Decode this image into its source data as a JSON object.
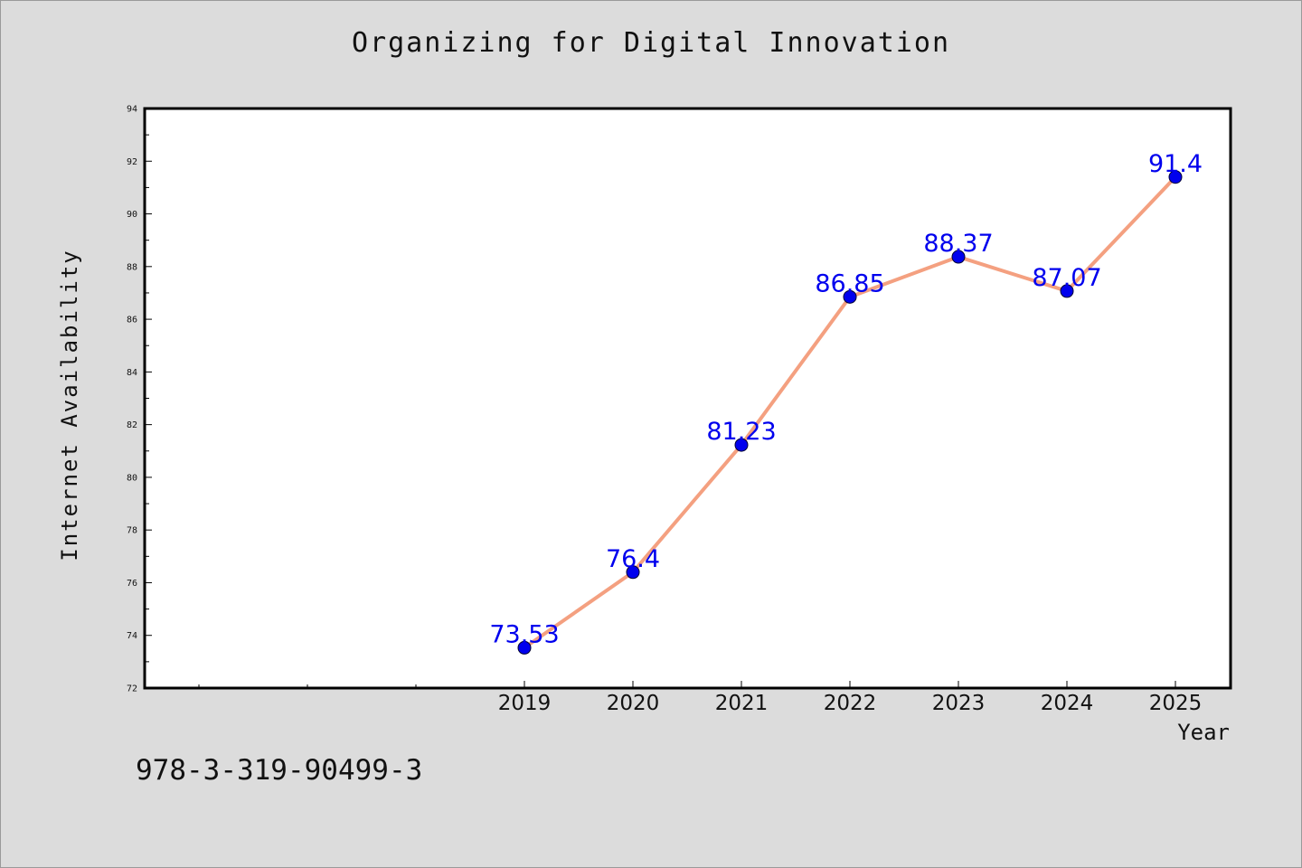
{
  "chart_data": {
    "type": "line",
    "title": "Organizing for Digital Innovation",
    "xlabel": "Year",
    "ylabel": "Internet Availability",
    "categories": [
      "2019",
      "2020",
      "2021",
      "2022",
      "2023",
      "2024",
      "2025"
    ],
    "series": [
      {
        "values": [
          73.53,
          76.4,
          81.23,
          86.85,
          88.37,
          87.07,
          91.4
        ],
        "line_color": "#f4a080",
        "marker_color": "#0000ee"
      }
    ],
    "data_labels": [
      "73.53",
      "76.4",
      "81.23",
      "86.85",
      "88.37",
      "87.07",
      "91.4"
    ],
    "ylim": [
      72,
      94
    ],
    "yticks": [
      "72",
      "74",
      "76",
      "78",
      "80",
      "82",
      "84",
      "86",
      "88",
      "90",
      "92",
      "94"
    ],
    "grid": false,
    "legend": "none",
    "label_color": "#0000ee"
  },
  "footer": {
    "isbn": "978-3-319-90499-3"
  }
}
